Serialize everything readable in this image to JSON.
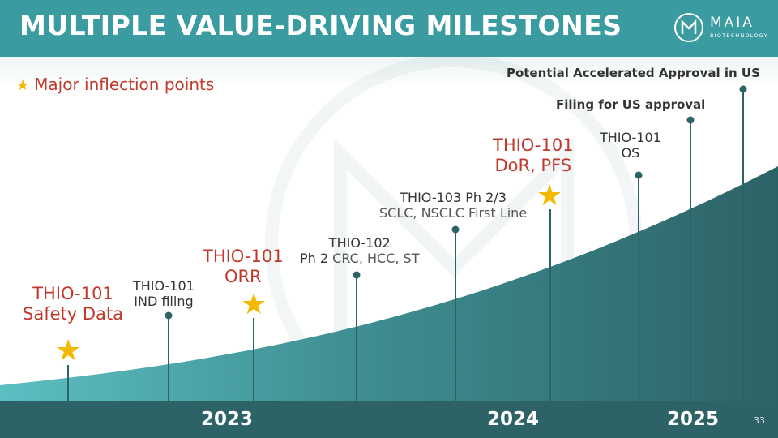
{
  "slide": {
    "title": "MULTIPLE VALUE-DRIVING MILESTONES",
    "page_number": "33",
    "colors": {
      "teal": "#3a9ba0",
      "dark_teal": "#2d6266",
      "accent_red": "#c0392b",
      "star_gold": "#f3b800"
    }
  },
  "logo": {
    "name": "MAIA",
    "subtitle": "BIOTECHNOLOGY",
    "icon": "maia-logo-icon"
  },
  "legend": {
    "icon": "star-icon",
    "text": "Major inflection points"
  },
  "milestones": [
    {
      "line1": "THIO-101",
      "line2": "Safety Data",
      "style": "major"
    },
    {
      "line1": "THIO-101",
      "line2": "IND filing",
      "style": "standard"
    },
    {
      "line1": "THIO-101",
      "line2": "ORR",
      "style": "major"
    },
    {
      "line1": "THIO-102",
      "line2a": "Ph 2",
      "line2b": " CRC, HCC, ST",
      "style": "standard"
    },
    {
      "line1": "THIO-103 Ph 2/3",
      "line2": "SCLC, NSCLC First Line",
      "style": "standard"
    },
    {
      "line1": "THIO-101",
      "line2": "DoR, PFS",
      "style": "major"
    },
    {
      "line1": "THIO-101",
      "line2": "OS",
      "style": "standard"
    },
    {
      "line1": "Filing for US  approval",
      "style": "bold"
    },
    {
      "line1": "Potential Accelerated Approval in US",
      "style": "bold"
    }
  ],
  "timeline": {
    "years": [
      "2023",
      "2024",
      "2025"
    ]
  }
}
